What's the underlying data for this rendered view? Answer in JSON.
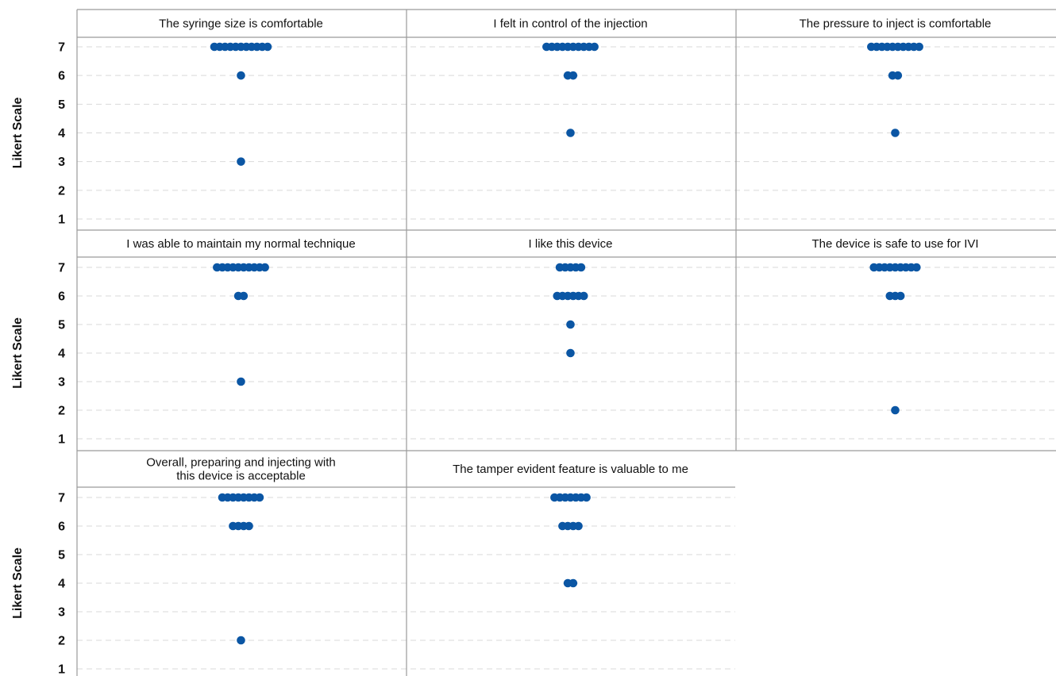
{
  "chart_data": {
    "type": "dot-plot",
    "ylabel": "Likert Scale",
    "yticks": [
      1,
      2,
      3,
      4,
      5,
      6,
      7
    ],
    "ylim": [
      1,
      7
    ],
    "grid": "horizontal dashed",
    "dot_color": "#0b56a4",
    "panels": [
      {
        "title": [
          "The syringe size is comfortable"
        ],
        "counts": [
          {
            "value": 7,
            "n": 11
          },
          {
            "value": 6,
            "n": 1
          },
          {
            "value": 3,
            "n": 1
          }
        ]
      },
      {
        "title": [
          "I felt in control of the injection"
        ],
        "counts": [
          {
            "value": 7,
            "n": 10
          },
          {
            "value": 6,
            "n": 2
          },
          {
            "value": 4,
            "n": 1
          }
        ]
      },
      {
        "title": [
          "The pressure to inject is comfortable"
        ],
        "counts": [
          {
            "value": 7,
            "n": 10
          },
          {
            "value": 6,
            "n": 2
          },
          {
            "value": 4,
            "n": 1
          }
        ]
      },
      {
        "title": [
          "I was able to maintain my normal technique"
        ],
        "counts": [
          {
            "value": 7,
            "n": 10
          },
          {
            "value": 6,
            "n": 2
          },
          {
            "value": 3,
            "n": 1
          }
        ]
      },
      {
        "title": [
          "I like this device"
        ],
        "counts": [
          {
            "value": 7,
            "n": 5
          },
          {
            "value": 6,
            "n": 6
          },
          {
            "value": 5,
            "n": 1
          },
          {
            "value": 4,
            "n": 1
          }
        ]
      },
      {
        "title": [
          "The device is safe to use for IVI"
        ],
        "counts": [
          {
            "value": 7,
            "n": 9
          },
          {
            "value": 6,
            "n": 3
          },
          {
            "value": 2,
            "n": 1
          }
        ]
      },
      {
        "title": [
          "Overall, preparing and injecting with",
          "this device is acceptable"
        ],
        "counts": [
          {
            "value": 7,
            "n": 8
          },
          {
            "value": 6,
            "n": 4
          },
          {
            "value": 2,
            "n": 1
          }
        ]
      },
      {
        "title": [
          "The tamper evident feature is valuable to me"
        ],
        "counts": [
          {
            "value": 7,
            "n": 7
          },
          {
            "value": 6,
            "n": 4
          },
          {
            "value": 4,
            "n": 2
          }
        ]
      }
    ]
  }
}
